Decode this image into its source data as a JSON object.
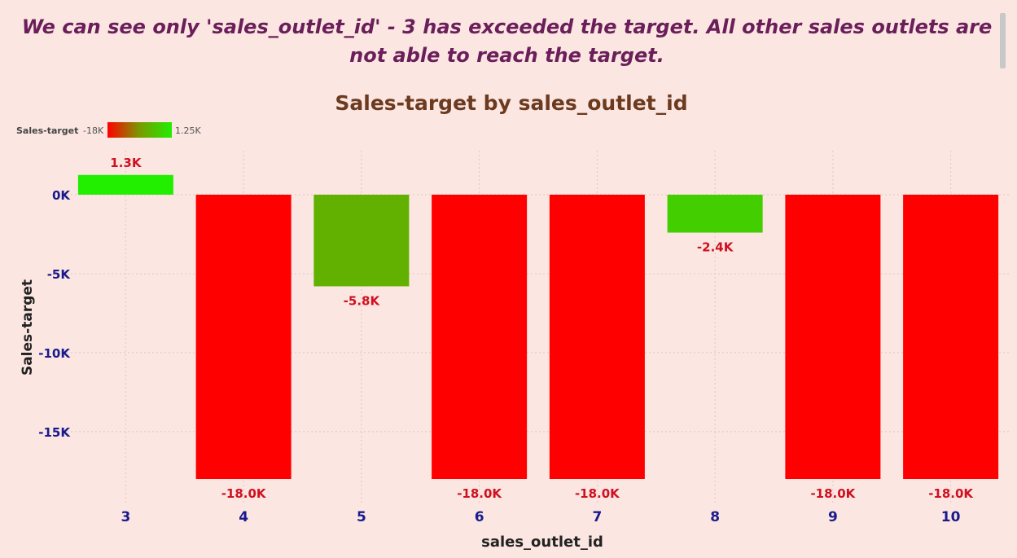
{
  "headline": "We can see only 'sales_outlet_id' - 3 has exceeded the target. All other sales outlets are not able to reach the target.",
  "chart_data": {
    "type": "bar",
    "title": "Sales-target by sales_outlet_id",
    "xlabel": "sales_outlet_id",
    "ylabel": "Sales-target",
    "categories": [
      "3",
      "4",
      "5",
      "6",
      "7",
      "8",
      "9",
      "10"
    ],
    "values": [
      1250,
      -18000,
      -5800,
      -18000,
      -18000,
      -2400,
      -18000,
      -18000
    ],
    "data_labels": [
      "1.3K",
      "-18.0K",
      "-5.8K",
      "-18.0K",
      "-18.0K",
      "-2.4K",
      "-18.0K",
      "-18.0K"
    ],
    "ylim": [
      -18000,
      2500
    ],
    "yticks": [
      0,
      -5000,
      -10000,
      -15000
    ],
    "ytick_labels": [
      "0K",
      "-5K",
      "-10K",
      "-15K"
    ],
    "grid": true,
    "legend": {
      "label": "Sales-target",
      "min_label": "-18K",
      "max_label": "1.25K",
      "placement": "top-left",
      "min_value": -18000,
      "max_value": 1250
    },
    "colors": {
      "low": "#ff0000",
      "mid": "#7a9a00",
      "high": "#22ee00",
      "title": "#6b3a1f",
      "tick": "#1a1a8c",
      "data_label": "#d01020"
    }
  }
}
